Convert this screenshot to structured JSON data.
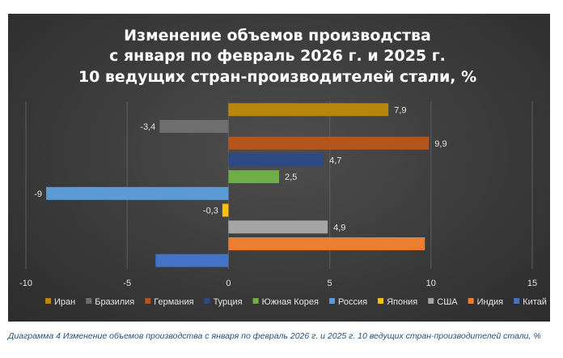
{
  "chart_data": {
    "type": "bar",
    "orientation": "horizontal",
    "title_lines": [
      "Изменение объемов производства",
      "с января по февраль 2026 г. и 2025 г.",
      "10 ведущих стран-производителей стали, %"
    ],
    "series": [
      {
        "name": "Иран",
        "value": 7.9,
        "label": "7,9",
        "color": "#b8860b"
      },
      {
        "name": "Бразилия",
        "value": -3.4,
        "label": "-3,4",
        "color": "#6e6e6e"
      },
      {
        "name": "Германия",
        "value": 9.9,
        "label": "9,9",
        "color": "#b5541b"
      },
      {
        "name": "Турция",
        "value": 4.7,
        "label": "4,7",
        "color": "#2c4a86"
      },
      {
        "name": "Южная Корея",
        "value": 2.5,
        "label": "2,5",
        "color": "#70ad47"
      },
      {
        "name": "Россия",
        "value": -9,
        "label": "-9",
        "color": "#5b9bd5"
      },
      {
        "name": "Япония",
        "value": -0.3,
        "label": "-0,3",
        "color": "#ffc000"
      },
      {
        "name": "США",
        "value": 4.9,
        "label": "4,9",
        "color": "#a5a5a5"
      },
      {
        "name": "Индия",
        "value": 9.7,
        "label": "",
        "color": "#ed7d31"
      },
      {
        "name": "Китай",
        "value": -3.6,
        "label": "",
        "color": "#4472c4"
      }
    ],
    "xlim": [
      -10,
      15
    ],
    "xticks": [
      -10,
      -5,
      0,
      5,
      10,
      15
    ],
    "gridlines": true,
    "legend_position": "bottom"
  },
  "caption": "Диаграмма 4 Изменение объемов производства с января по февраль 2026 г. и 2025 г. 10 ведущих стран-производителей стали, %"
}
